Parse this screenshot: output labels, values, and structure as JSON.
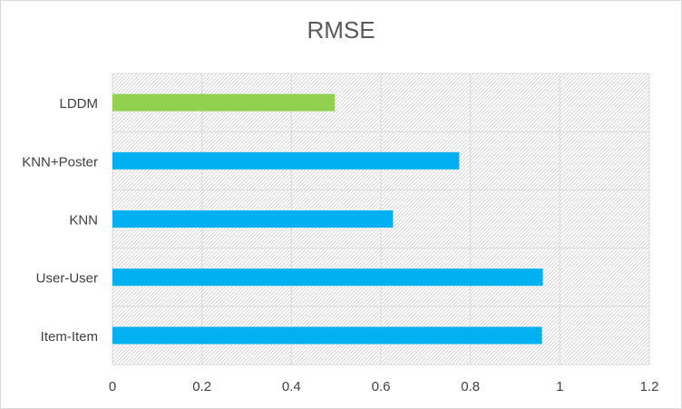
{
  "chart_data": {
    "type": "bar",
    "orientation": "horizontal",
    "title": "RMSE",
    "xlabel": "",
    "ylabel": "",
    "categories": [
      "LDDM",
      "KNN+Poster",
      "KNN",
      "User-User",
      "Item-Item"
    ],
    "values": [
      0.497,
      0.775,
      0.627,
      0.962,
      0.96
    ],
    "bar_colors": [
      "#92d050",
      "#00b0f0",
      "#00b0f0",
      "#00b0f0",
      "#00b0f0"
    ],
    "xlim": [
      0,
      1.2
    ],
    "x_ticks": [
      "0",
      "0.2",
      "0.4",
      "0.6",
      "0.8",
      "1",
      "1.2"
    ],
    "grid": true,
    "legend": "none"
  }
}
